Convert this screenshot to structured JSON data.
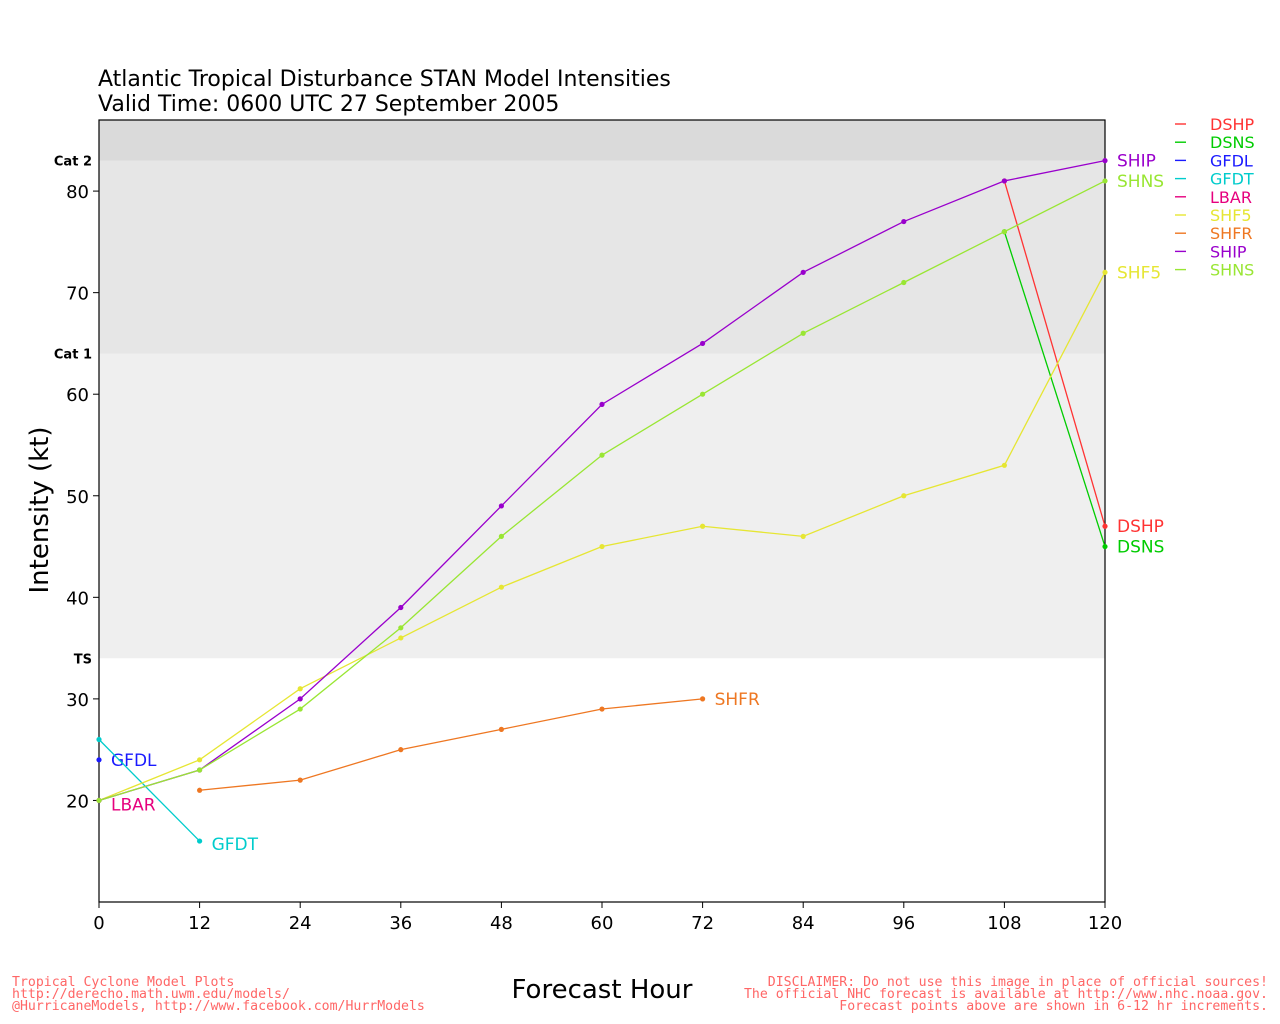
{
  "chart_data": {
    "type": "line",
    "title": "Atlantic Tropical Disturbance STAN Model Intensities",
    "subtitle": "Valid Time: 0600 UTC 27 September 2005",
    "xlabel": "Forecast Hour",
    "ylabel": "Intensity (kt)",
    "xlim": [
      0,
      120
    ],
    "ylim": [
      10,
      87
    ],
    "xticks": [
      0,
      12,
      24,
      36,
      48,
      60,
      72,
      84,
      96,
      108,
      120
    ],
    "yticks": [
      20,
      30,
      40,
      50,
      60,
      70,
      80
    ],
    "bands": [
      {
        "label": "TS",
        "from": 34,
        "to": 64,
        "color": "#efefef"
      },
      {
        "label": "Cat 1",
        "from": 64,
        "to": 83,
        "color": "#e6e6e6"
      },
      {
        "label": "Cat 2",
        "from": 83,
        "to": 87,
        "color": "#dadada"
      }
    ],
    "legend_position": "right",
    "series": [
      {
        "name": "DSHP",
        "color": "#ff3333",
        "points": [
          [
            108,
            81
          ],
          [
            120,
            47
          ]
        ]
      },
      {
        "name": "DSNS",
        "color": "#00cc00",
        "points": [
          [
            108,
            76
          ],
          [
            120,
            45
          ]
        ]
      },
      {
        "name": "GFDL",
        "color": "#1a1aff",
        "points": [
          [
            0,
            24
          ]
        ]
      },
      {
        "name": "GFDT",
        "color": "#00cccc",
        "points": [
          [
            0,
            26
          ],
          [
            12,
            16
          ]
        ]
      },
      {
        "name": "LBAR",
        "color": "#e6007e",
        "points": [
          [
            0,
            20
          ]
        ]
      },
      {
        "name": "SHF5",
        "color": "#e6e633",
        "points": [
          [
            0,
            20
          ],
          [
            12,
            24
          ],
          [
            24,
            31
          ],
          [
            36,
            36
          ],
          [
            48,
            41
          ],
          [
            60,
            45
          ],
          [
            72,
            47
          ],
          [
            84,
            46
          ],
          [
            96,
            50
          ],
          [
            108,
            53
          ],
          [
            120,
            72
          ]
        ]
      },
      {
        "name": "SHFR",
        "color": "#ee7722",
        "points": [
          [
            12,
            21
          ],
          [
            24,
            22
          ],
          [
            36,
            25
          ],
          [
            48,
            27
          ],
          [
            60,
            29
          ],
          [
            72,
            30
          ]
        ]
      },
      {
        "name": "SHIP",
        "color": "#9900cc",
        "points": [
          [
            0,
            20
          ],
          [
            12,
            23
          ],
          [
            24,
            30
          ],
          [
            36,
            39
          ],
          [
            48,
            49
          ],
          [
            60,
            59
          ],
          [
            72,
            65
          ],
          [
            84,
            72
          ],
          [
            96,
            77
          ],
          [
            108,
            81
          ],
          [
            120,
            83
          ]
        ]
      },
      {
        "name": "SHNS",
        "color": "#99e633",
        "points": [
          [
            0,
            20
          ],
          [
            12,
            23
          ],
          [
            24,
            29
          ],
          [
            36,
            37
          ],
          [
            48,
            46
          ],
          [
            60,
            54
          ],
          [
            72,
            60
          ],
          [
            84,
            66
          ],
          [
            96,
            71
          ],
          [
            108,
            76
          ],
          [
            120,
            81
          ]
        ]
      }
    ]
  },
  "footer": {
    "left_lines": [
      "Tropical Cyclone Model Plots",
      "http://derecho.math.uwm.edu/models/",
      "@HurricaneModels, http://www.facebook.com/HurrModels"
    ],
    "right_lines": [
      "DISCLAIMER: Do not use this image in place of official sources!",
      "The official NHC forecast is available at http://www.nhc.noaa.gov.",
      "Forecast points above are shown in 6-12 hr increments."
    ]
  }
}
